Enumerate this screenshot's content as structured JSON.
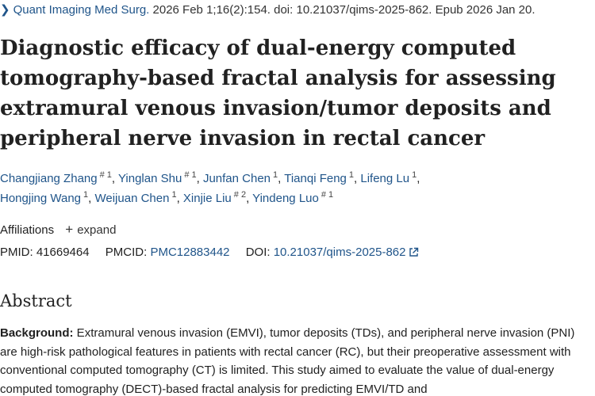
{
  "citation": {
    "journal": "Quant Imaging Med Surg.",
    "details": "2026 Feb 1;16(2):154. doi: 10.21037/qims-2025-862. Epub 2026 Jan 20."
  },
  "title": "Diagnostic efficacy of dual-energy computed tomography-based fractal analysis for assessing extramural venous invasion/tumor deposits and peripheral nerve invasion in rectal cancer",
  "authors": [
    {
      "name": "Changjiang Zhang",
      "sup": "# 1"
    },
    {
      "name": "Yinglan Shu",
      "sup": "# 1"
    },
    {
      "name": "Junfan Chen",
      "sup": "1"
    },
    {
      "name": "Tianqi Feng",
      "sup": "1"
    },
    {
      "name": "Lifeng Lu",
      "sup": "1"
    },
    {
      "name": "Hongjing Wang",
      "sup": "1"
    },
    {
      "name": "Weijuan Chen",
      "sup": "1"
    },
    {
      "name": "Xinjie Liu",
      "sup": "# 2"
    },
    {
      "name": "Yindeng Luo",
      "sup": "# 1"
    }
  ],
  "affiliations": {
    "label": "Affiliations",
    "expand_label": "expand"
  },
  "identifiers": {
    "pmid_label": "PMID:",
    "pmid": "41669464",
    "pmcid_label": "PMCID:",
    "pmcid": "PMC12883442",
    "doi_label": "DOI:",
    "doi": "10.21037/qims-2025-862"
  },
  "abstract": {
    "heading": "Abstract",
    "background_label": "Background:",
    "background_text": " Extramural venous invasion (EMVI), tumor deposits (TDs), and peripheral nerve invasion (PNI) are high-risk pathological features in patients with rectal cancer (RC), but their preoperative assessment with conventional computed tomography (CT) is limited. This study aimed to evaluate the value of dual-energy computed tomography (DECT)-based fractal analysis for predicting EMVI/TD and"
  },
  "icons": {
    "breadcrumb": "chevron-right-icon",
    "expand": "plus-icon",
    "external": "external-link-icon"
  },
  "colors": {
    "link": "#20558a",
    "text": "#212121"
  }
}
